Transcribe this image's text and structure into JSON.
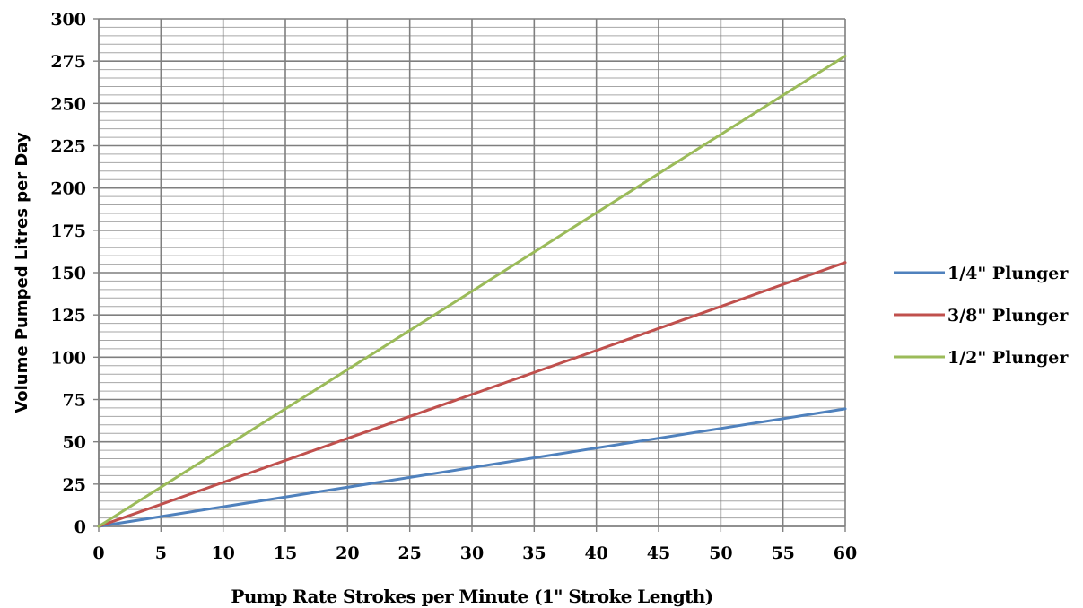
{
  "chart_data": {
    "type": "line",
    "xlabel": "Pump Rate Strokes per Minute (1\" Stroke Length)",
    "ylabel": "Volume Pumped Litres per Day",
    "xlim": [
      0,
      60
    ],
    "ylim": [
      0,
      300
    ],
    "x_ticks": [
      "0",
      "5",
      "10",
      "15",
      "20",
      "25",
      "30",
      "35",
      "40",
      "45",
      "50",
      "55",
      "60"
    ],
    "y_ticks": [
      "0",
      "25",
      "50",
      "75",
      "100",
      "125",
      "150",
      "175",
      "200",
      "225",
      "250",
      "275",
      "300"
    ],
    "grid": true,
    "legend_position": "right",
    "series": [
      {
        "name": "1/4\" Plunger",
        "color": "#4f81bd",
        "x": [
          0,
          60
        ],
        "y": [
          0,
          69.5
        ]
      },
      {
        "name": "3/8\" Plunger",
        "color": "#c0504d",
        "x": [
          0,
          60
        ],
        "y": [
          0,
          156
        ]
      },
      {
        "name": "1/2\" Plunger",
        "color": "#9bbb59",
        "x": [
          0,
          60
        ],
        "y": [
          0,
          278
        ]
      }
    ]
  }
}
